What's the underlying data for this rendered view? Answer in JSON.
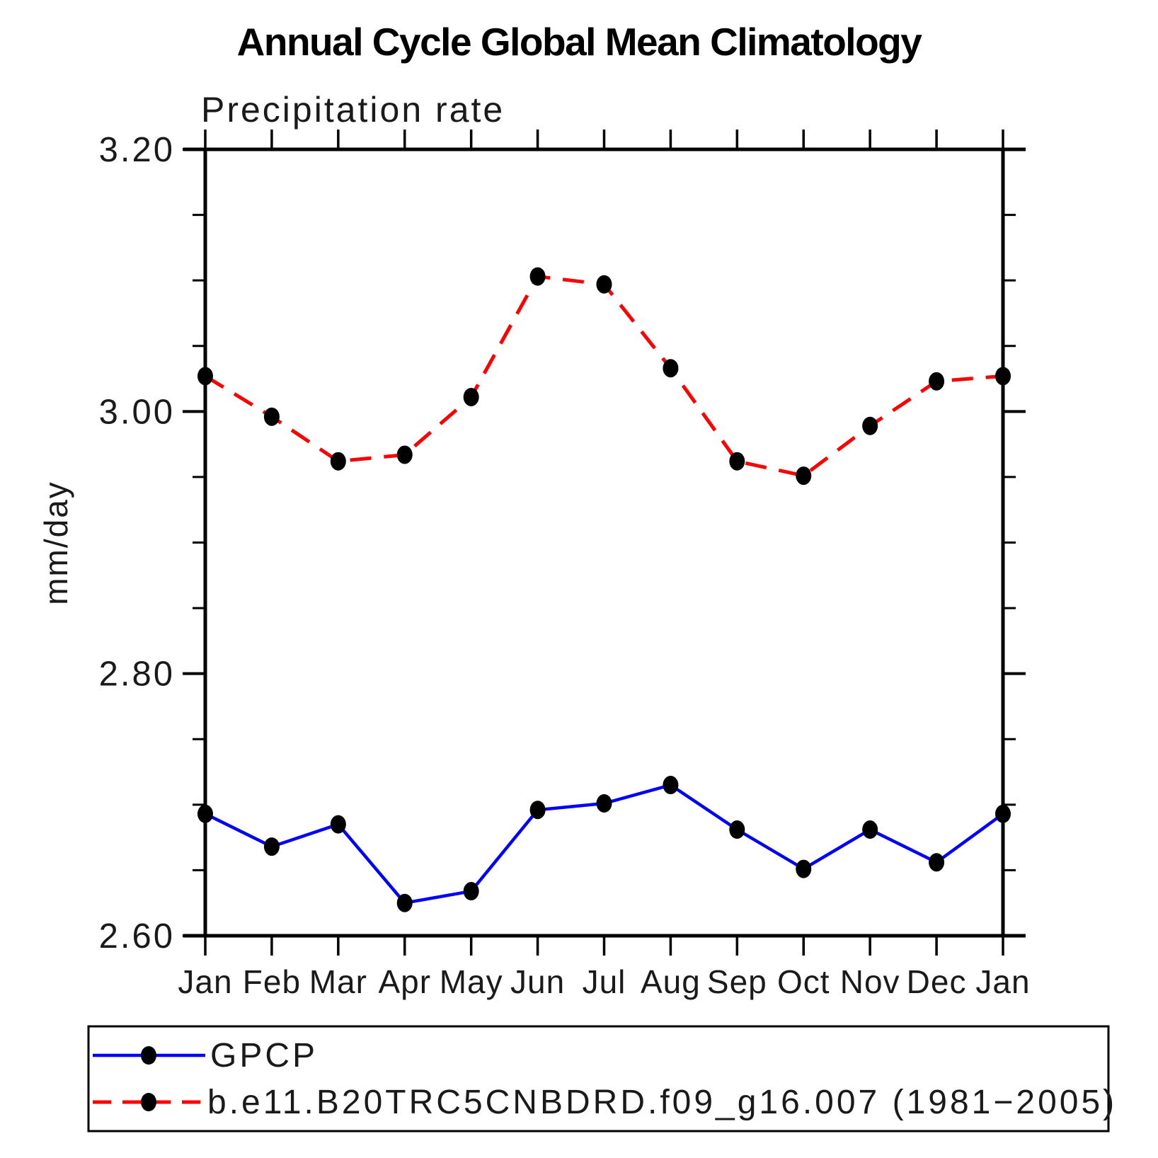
{
  "page": {
    "background": "#ffffff",
    "text_color": "#000000"
  },
  "chart_data": {
    "type": "line",
    "title": "Annual Cycle Global Mean Climatology",
    "subtitle": "Precipitation rate",
    "xlabel": "",
    "ylabel": "mm/day",
    "categories": [
      "Jan",
      "Feb",
      "Mar",
      "Apr",
      "May",
      "Jun",
      "Jul",
      "Aug",
      "Sep",
      "Oct",
      "Nov",
      "Dec",
      "Jan"
    ],
    "ylim": [
      2.6,
      3.2
    ],
    "ytick_major_labels": [
      "3.20",
      "3.00",
      "2.80",
      "2.60"
    ],
    "ytick_major_values": [
      3.2,
      3.0,
      2.8,
      2.6
    ],
    "ytick_minor_values": [
      3.15,
      3.1,
      3.05,
      2.95,
      2.9,
      2.85,
      2.75,
      2.7,
      2.65
    ],
    "grid": false,
    "legend_position": "bottom-box",
    "marker": "filled-circle",
    "marker_color": "#000000",
    "series": [
      {
        "name": "GPCP",
        "color": "#0000ff",
        "style": "solid",
        "values": [
          2.693,
          2.668,
          2.685,
          2.625,
          2.634,
          2.696,
          2.701,
          2.715,
          2.681,
          2.651,
          2.681,
          2.656,
          2.693
        ]
      },
      {
        "name": "b.e11.B20TRC5CNBDRD.f09_g16.007 (1981−2005)",
        "color": "#ff0000",
        "style": "dashed",
        "values": [
          3.027,
          2.996,
          2.962,
          2.967,
          3.011,
          3.103,
          3.097,
          3.033,
          2.962,
          2.951,
          2.989,
          3.023,
          3.027
        ]
      }
    ]
  }
}
